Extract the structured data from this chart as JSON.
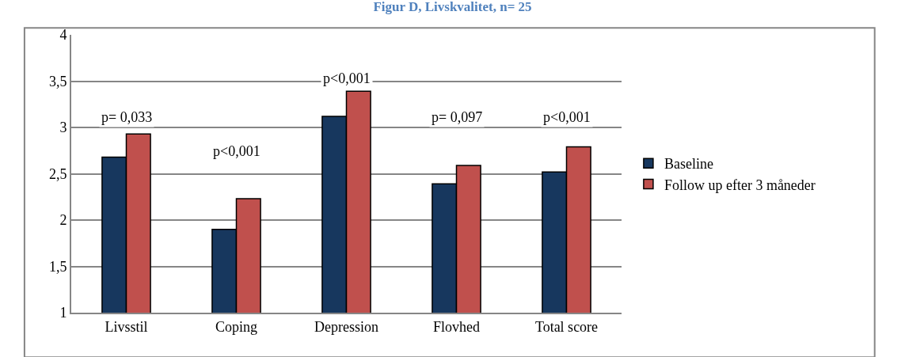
{
  "chart_data": {
    "type": "bar",
    "title": "Figur D, Livskvalitet, n= 25",
    "categories": [
      "Livsstil",
      "Coping",
      "Depression",
      "Flovhed",
      "Total score"
    ],
    "series": [
      {
        "name": "Baseline",
        "color": "#17375e",
        "values": [
          2.68,
          1.9,
          3.12,
          2.39,
          2.52
        ]
      },
      {
        "name": "Follow up efter 3 måneder",
        "color": "#c0504d",
        "values": [
          2.93,
          2.23,
          3.39,
          2.59,
          2.79
        ]
      }
    ],
    "ylim": [
      1,
      4
    ],
    "yticks": [
      1,
      {
        "value": 1.5,
        "label": "1,5"
      },
      2,
      {
        "value": 2.5,
        "label": "2,5"
      },
      3,
      {
        "value": 3.5,
        "label": "3,5"
      },
      4
    ],
    "grid": "y",
    "legend": "right",
    "annotations": [
      "p= 0,033",
      "p<0,001",
      "p<0,001",
      "p= 0,097",
      "p<0,001"
    ]
  }
}
